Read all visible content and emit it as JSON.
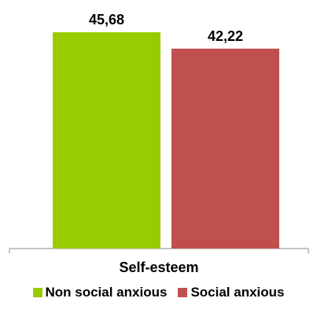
{
  "chart_data": {
    "type": "bar",
    "categories": [
      "Self-esteem"
    ],
    "series": [
      {
        "name": "Non social anxious",
        "values": [
          45.68
        ],
        "label": "45,68",
        "color": "#99cc00"
      },
      {
        "name": "Social anxious",
        "values": [
          42.22
        ],
        "label": "42,22",
        "color": "#c0504d"
      }
    ],
    "ylim": [
      0,
      50
    ],
    "grid": false,
    "legend_position": "bottom"
  }
}
